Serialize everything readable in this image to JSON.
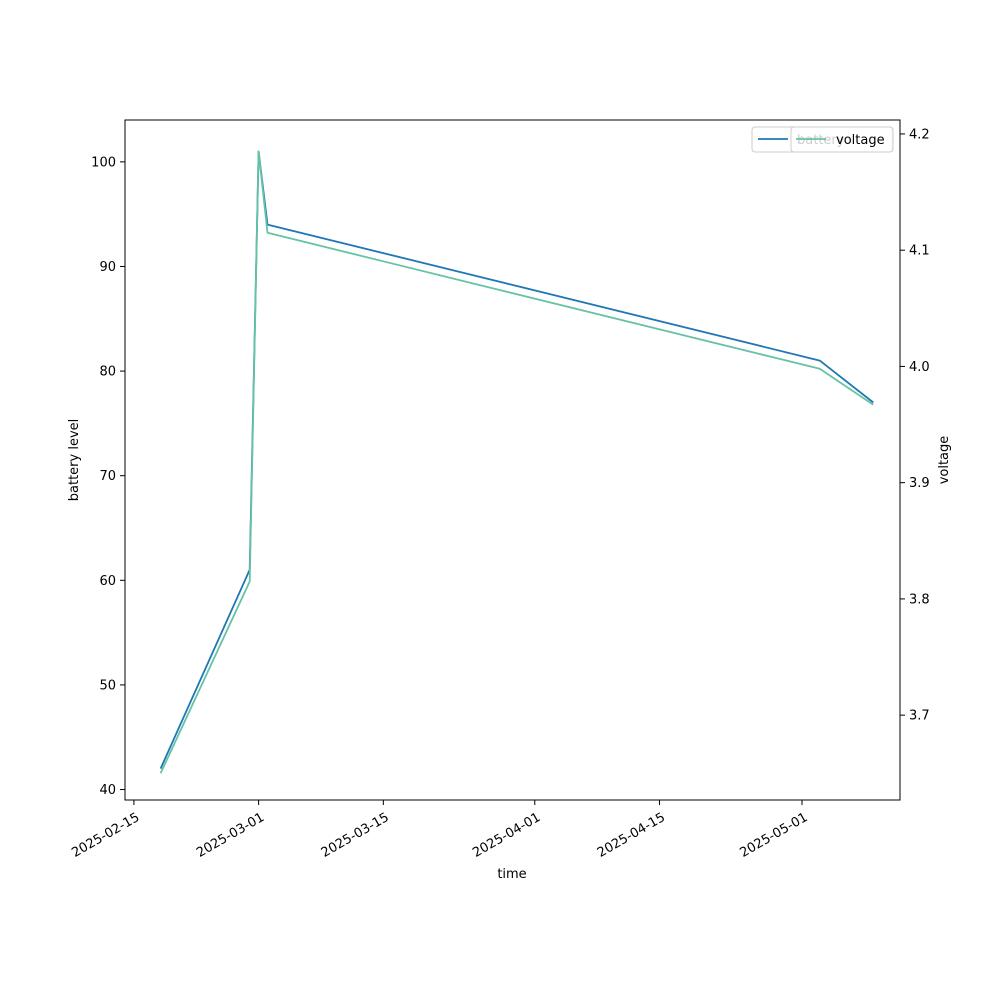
{
  "chart_data": {
    "type": "line",
    "xlabel": "time",
    "ylabel": "battery level",
    "y2label": "voltage",
    "x": [
      "2025-02-18",
      "2025-02-28",
      "2025-03-01",
      "2025-03-02",
      "2025-05-03",
      "2025-05-09"
    ],
    "series": [
      {
        "name": "battery",
        "axis": "left",
        "color": "#1f77b4",
        "values": [
          42,
          61,
          101,
          94,
          81,
          77
        ]
      },
      {
        "name": "voltage",
        "axis": "right",
        "color": "#66c2a5",
        "values": [
          3.65,
          3.815,
          4.185,
          4.115,
          3.998,
          3.967
        ]
      }
    ],
    "x_ticks": [
      "2025-02-15",
      "2025-03-01",
      "2025-03-15",
      "2025-04-01",
      "2025-04-15",
      "2025-05-01"
    ],
    "xlim": [
      "2025-02-14",
      "2025-05-12"
    ],
    "y_ticks": [
      40,
      50,
      60,
      70,
      80,
      90,
      100
    ],
    "ylim": [
      39,
      104
    ],
    "y2_ticks": [
      3.7,
      3.8,
      3.9,
      4.0,
      4.1,
      4.2
    ],
    "y2lim": [
      3.627,
      4.212
    ],
    "grid": false,
    "legend_placement": "top-right"
  }
}
